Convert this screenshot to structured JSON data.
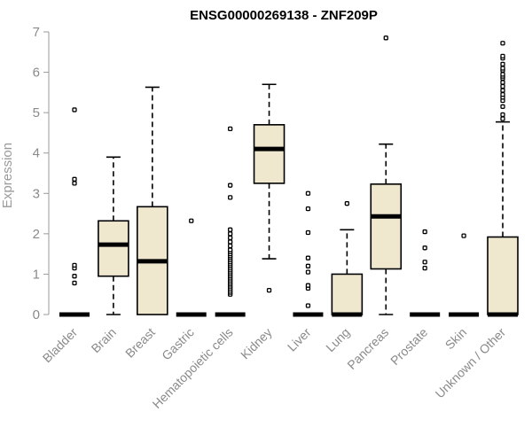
{
  "chart_data": {
    "type": "box",
    "title": "ENSG00000269138 - ZNF209P",
    "xlabel": "",
    "ylabel": "Expression",
    "ylim": [
      0,
      7
    ],
    "yticks": [
      0,
      1,
      2,
      3,
      4,
      5,
      6,
      7
    ],
    "grid": false,
    "box_color": "#efe8cf",
    "categories": [
      "Bladder",
      "Brain",
      "Breast",
      "Gastric",
      "Hematopoietic cells",
      "Kidney",
      "Liver",
      "Lung",
      "Pancreas",
      "Prostate",
      "Skin",
      "Unknown / Other"
    ],
    "boxes": [
      {
        "category": "Bladder",
        "q1": 0,
        "median": 0,
        "q3": 0,
        "whisker_low": 0,
        "whisker_high": 0,
        "outliers": [
          0.78,
          0.95,
          1.15,
          1.22,
          3.25,
          3.35,
          5.07
        ]
      },
      {
        "category": "Brain",
        "q1": 0.95,
        "median": 1.73,
        "q3": 2.32,
        "whisker_low": 0,
        "whisker_high": 3.9,
        "outliers": []
      },
      {
        "category": "Breast",
        "q1": 0,
        "median": 1.32,
        "q3": 2.67,
        "whisker_low": 0,
        "whisker_high": 5.63,
        "outliers": []
      },
      {
        "category": "Gastric",
        "q1": 0,
        "median": 0,
        "q3": 0,
        "whisker_low": 0,
        "whisker_high": 0,
        "outliers": [
          2.32
        ]
      },
      {
        "category": "Hematopoietic cells",
        "q1": 0,
        "median": 0,
        "q3": 0,
        "whisker_low": 0,
        "whisker_high": 0,
        "outliers": [
          0.5,
          0.55,
          0.6,
          0.65,
          0.7,
          0.75,
          0.8,
          0.85,
          0.9,
          0.95,
          1.0,
          1.05,
          1.1,
          1.15,
          1.2,
          1.25,
          1.3,
          1.35,
          1.4,
          1.45,
          1.5,
          1.55,
          1.6,
          1.7,
          1.8,
          1.9,
          2.0,
          2.1,
          2.9,
          3.2,
          4.6
        ]
      },
      {
        "category": "Kidney",
        "q1": 3.25,
        "median": 4.1,
        "q3": 4.7,
        "whisker_low": 1.38,
        "whisker_high": 5.7,
        "outliers": [
          0.6
        ]
      },
      {
        "category": "Liver",
        "q1": 0,
        "median": 0,
        "q3": 0,
        "whisker_low": 0,
        "whisker_high": 0,
        "outliers": [
          0.22,
          0.65,
          0.72,
          1.05,
          1.2,
          1.4,
          2.03,
          2.62,
          3.0
        ]
      },
      {
        "category": "Lung",
        "q1": 0,
        "median": 0,
        "q3": 1.0,
        "whisker_low": 0,
        "whisker_high": 2.1,
        "outliers": [
          2.75
        ]
      },
      {
        "category": "Pancreas",
        "q1": 1.13,
        "median": 2.43,
        "q3": 3.23,
        "whisker_low": 0,
        "whisker_high": 4.22,
        "outliers": [
          6.85
        ]
      },
      {
        "category": "Prostate",
        "q1": 0,
        "median": 0,
        "q3": 0,
        "whisker_low": 0,
        "whisker_high": 0,
        "outliers": [
          1.15,
          1.3,
          1.65,
          2.05
        ]
      },
      {
        "category": "Skin",
        "q1": 0,
        "median": 0,
        "q3": 0,
        "whisker_low": 0,
        "whisker_high": 0,
        "outliers": [
          1.95
        ]
      },
      {
        "category": "Unknown / Other",
        "q1": 0,
        "median": 0,
        "q3": 1.92,
        "whisker_low": 0,
        "whisker_high": 4.77,
        "outliers": [
          4.85,
          4.95,
          5.15,
          5.3,
          5.38,
          5.45,
          5.55,
          5.65,
          5.75,
          5.85,
          5.9,
          5.95,
          6.05,
          6.1,
          6.2,
          6.35,
          6.4,
          6.72
        ]
      }
    ]
  }
}
